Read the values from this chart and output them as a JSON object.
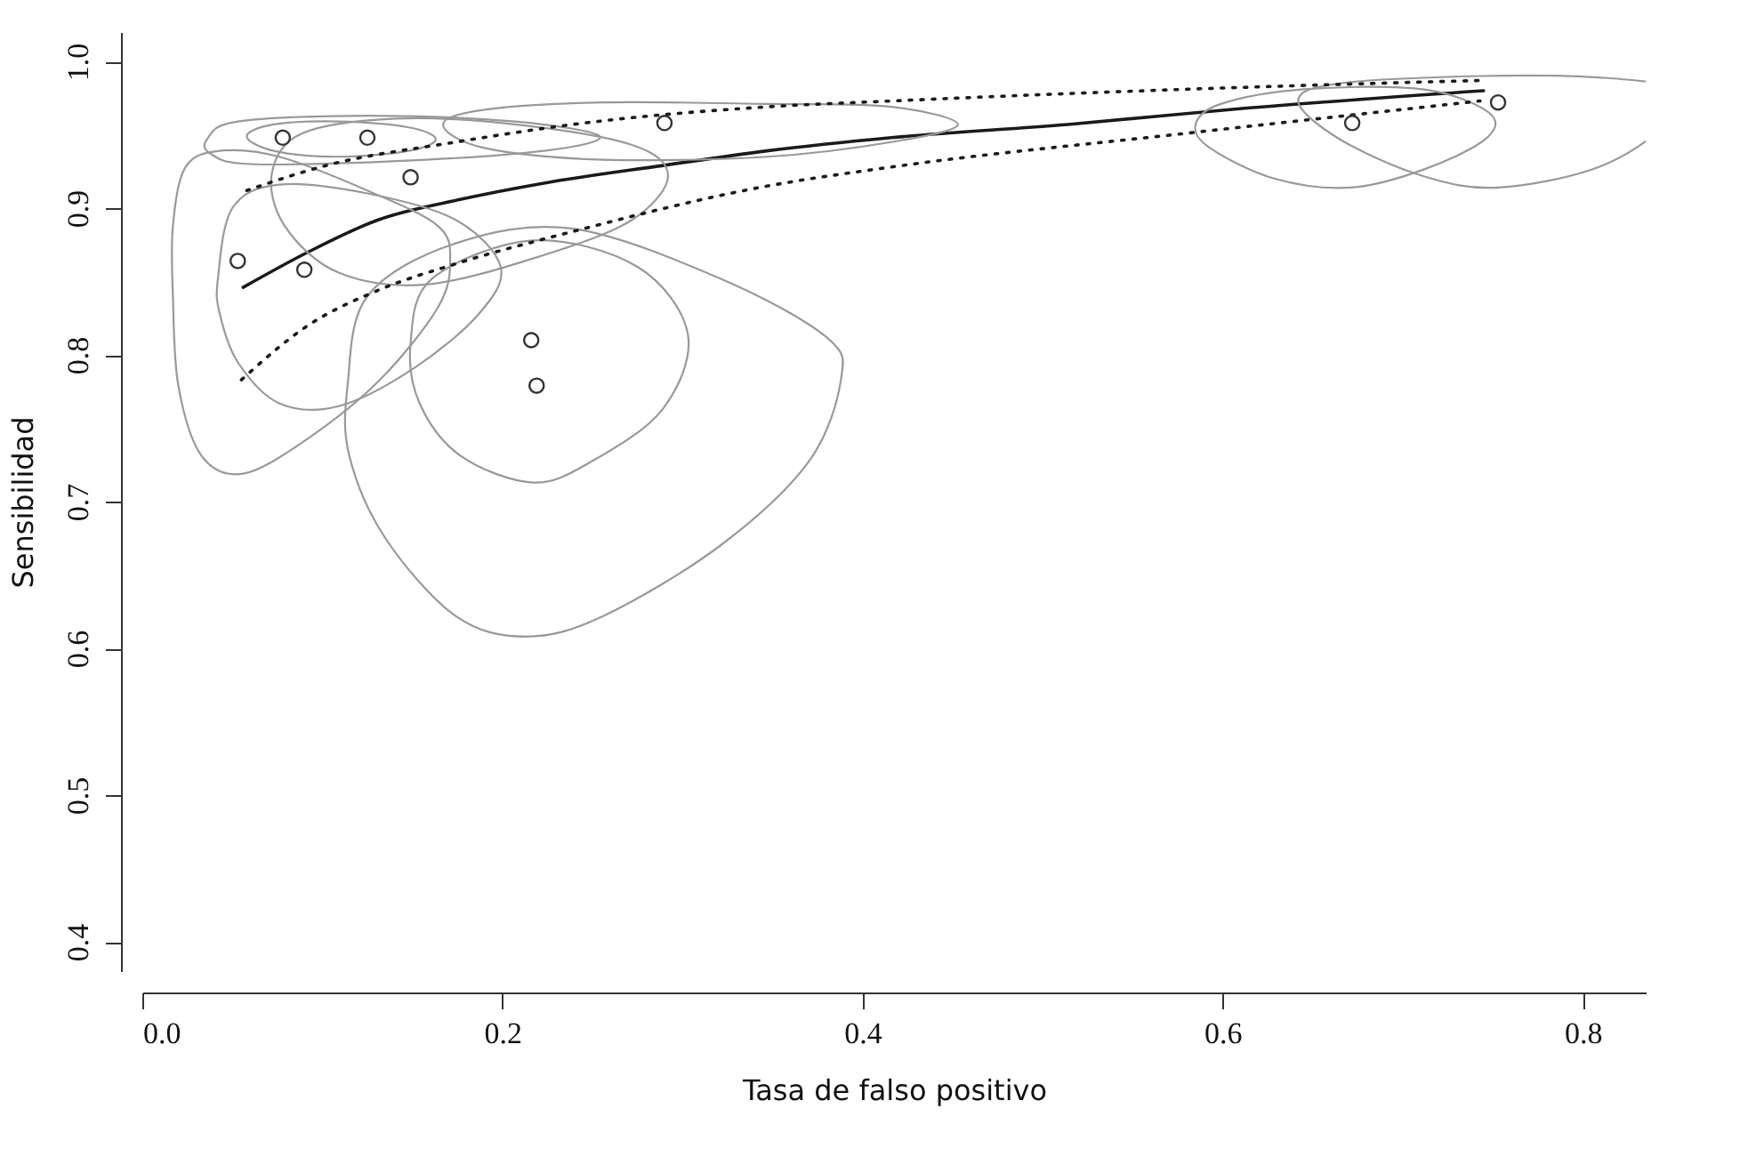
{
  "chart_data": {
    "type": "line",
    "xlabel": "Tasa de falso positivo",
    "ylabel": "Sensibilidad",
    "xlim": [
      0,
      0.835
    ],
    "ylim": [
      0.38,
      1.02
    ],
    "xticks": [
      {
        "value": 0,
        "label": "0.0"
      },
      0.2,
      0.4,
      0.6,
      0.8
    ],
    "yticks": [
      0.4,
      0.5,
      0.6,
      0.7,
      0.8,
      0.9,
      {
        "value": 1,
        "label": "1.0"
      }
    ],
    "grid": false,
    "series": [
      {
        "color": "#1a1a1a",
        "line_style": "solid",
        "marker": "none",
        "x": [
          0.056,
          0.092,
          0.131,
          0.177,
          0.223,
          0.289,
          0.347,
          0.416,
          0.514,
          0.612,
          0.745
        ],
        "values": [
          0.846,
          0.87,
          0.892,
          0.906,
          0.917,
          0.929,
          0.939,
          0.948,
          0.957,
          0.968,
          0.98
        ]
      },
      {
        "color": "#1a1a1a",
        "line_style": "dotted",
        "marker": "none",
        "x": [
          0.058,
          0.102,
          0.174,
          0.239,
          0.347,
          0.416,
          0.58,
          0.743
        ],
        "values": [
          0.912,
          0.929,
          0.945,
          0.957,
          0.969,
          0.973,
          0.981,
          0.987
        ]
      },
      {
        "color": "#1a1a1a",
        "line_style": "dotted",
        "marker": "none",
        "x": [
          0.055,
          0.092,
          0.131,
          0.174,
          0.239,
          0.347,
          0.416,
          0.58,
          0.743
        ],
        "values": [
          0.783,
          0.82,
          0.844,
          0.862,
          0.884,
          0.915,
          0.928,
          0.951,
          0.973
        ]
      },
      {
        "type": "scatter",
        "color": "#333333",
        "marker": "circle",
        "x": [
          0.078,
          0.125,
          0.149,
          0.053,
          0.09,
          0.216,
          0.219,
          0.29,
          0.672,
          0.753
        ],
        "values": [
          0.948,
          0.948,
          0.921,
          0.864,
          0.858,
          0.81,
          0.779,
          0.958,
          0.958,
          0.972
        ]
      }
    ]
  }
}
